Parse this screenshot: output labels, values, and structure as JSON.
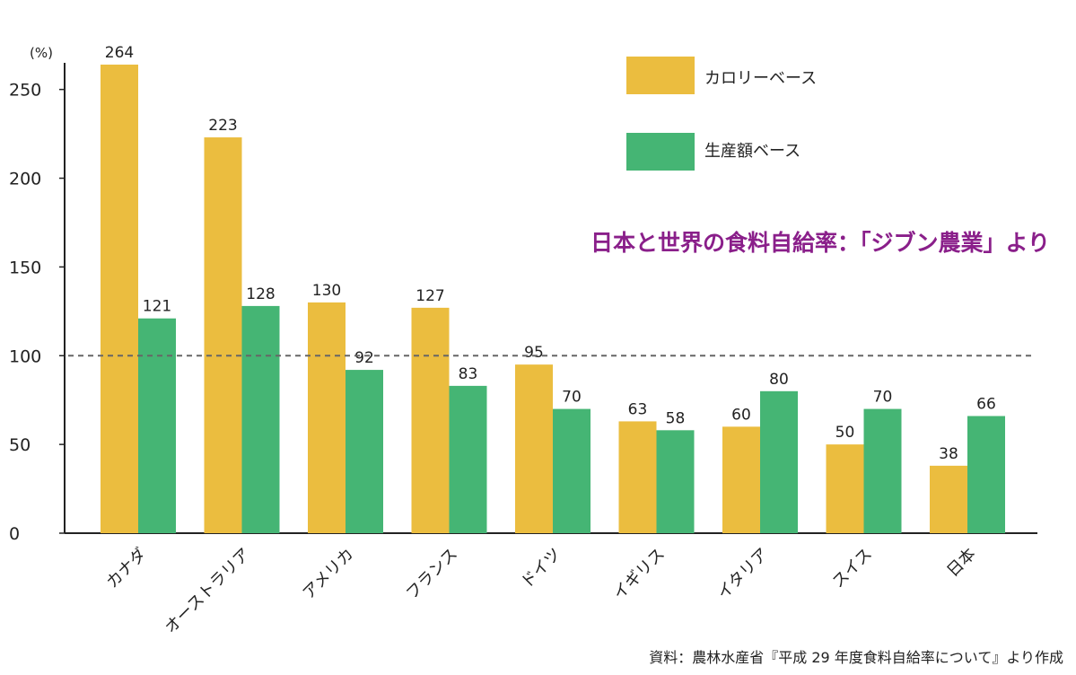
{
  "chart_data": {
    "type": "bar",
    "title": "日本と世界の食料自給率：「ジブン農業」より",
    "unit_label": "(%)",
    "categories": [
      "カナダ",
      "オーストラリア",
      "アメリカ",
      "フランス",
      "ドイツ",
      "イギリス",
      "イタリア",
      "スイス",
      "日本"
    ],
    "highlight_category": "日本",
    "series": [
      {
        "name": "カロリーベース",
        "color": "#ebbd3f",
        "values": [
          264,
          223,
          130,
          127,
          95,
          63,
          60,
          50,
          38
        ]
      },
      {
        "name": "生産額ベース",
        "color": "#45b574",
        "values": [
          121,
          128,
          92,
          83,
          70,
          58,
          80,
          70,
          66
        ]
      }
    ],
    "ylim": [
      0,
      265
    ],
    "yticks": [
      0,
      50,
      100,
      150,
      200,
      250
    ],
    "reference_line": 100,
    "legend_position": "top-right",
    "grid": false,
    "source": "資料：農林水産省『平成 29 年度食料自給率について』より作成"
  },
  "colors": {
    "title": "#8a1f8a",
    "highlight_label": "#d40000",
    "axis": "#222222",
    "reference_line": "#666666"
  }
}
